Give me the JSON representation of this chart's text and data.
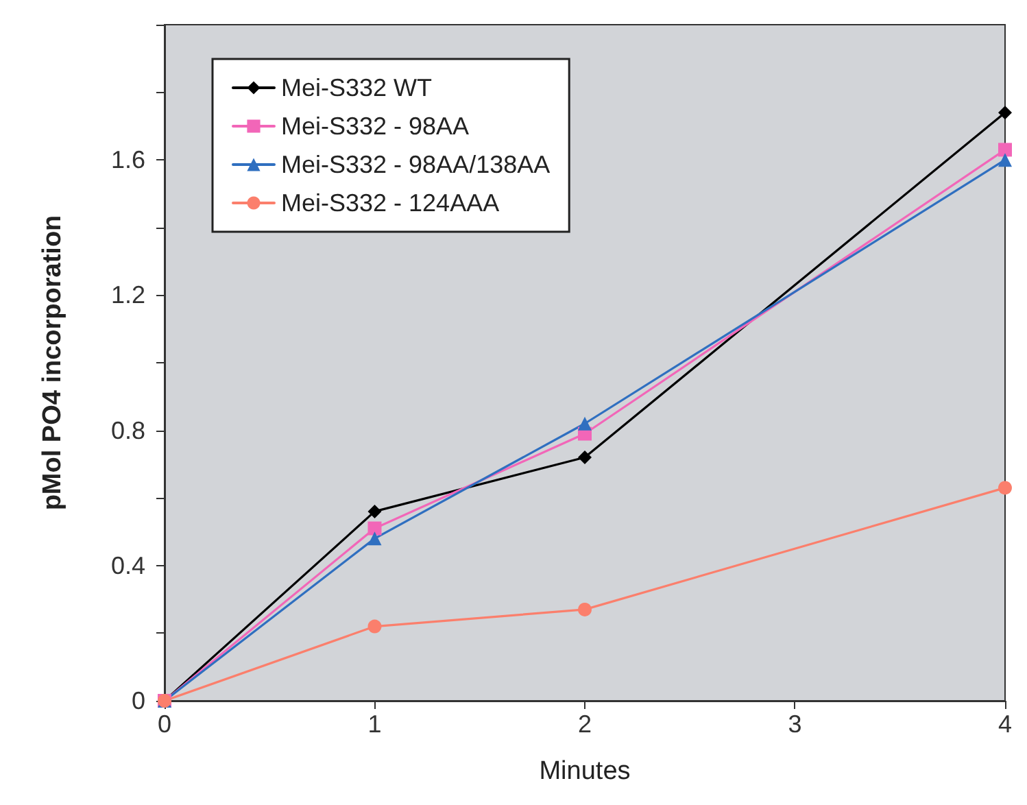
{
  "chart_data": {
    "type": "line",
    "xlabel": "Minutes",
    "ylabel": "pMol PO4 incorporation",
    "x": [
      0,
      1,
      2,
      4
    ],
    "xlim": [
      0,
      4
    ],
    "xticks": [
      0,
      1,
      2,
      3,
      4
    ],
    "ylim": [
      0,
      2
    ],
    "yticks": [
      0,
      {
        "value": 0.2,
        "label": null
      },
      0.4,
      {
        "value": 0.6,
        "label": null
      },
      0.8,
      {
        "value": 1.0,
        "label": null
      },
      1.2,
      {
        "value": 1.4,
        "label": null
      },
      1.6,
      {
        "value": 1.8,
        "label": null
      },
      {
        "value": 2.0,
        "label": null
      }
    ],
    "grid": false,
    "legend": "top left",
    "line_style": "solid",
    "series": [
      {
        "name": "Mei-S332 WT",
        "color": "#000000",
        "marker": "diamond",
        "values": [
          0,
          0.56,
          0.72,
          1.74
        ]
      },
      {
        "name": "Mei-S332 - 98AA",
        "color": "#f266b8",
        "marker": "square",
        "values": [
          0,
          0.51,
          0.79,
          1.63
        ]
      },
      {
        "name": "Mei-S332 - 98AA/138AA",
        "color": "#2f6fc0",
        "marker": "triangle",
        "values": [
          0,
          0.48,
          0.82,
          1.6
        ]
      },
      {
        "name": "Mei-S332 - 124AAA",
        "color": "#fb7f6c",
        "marker": "circle",
        "values": [
          0,
          0.22,
          0.27,
          0.63
        ]
      }
    ]
  }
}
